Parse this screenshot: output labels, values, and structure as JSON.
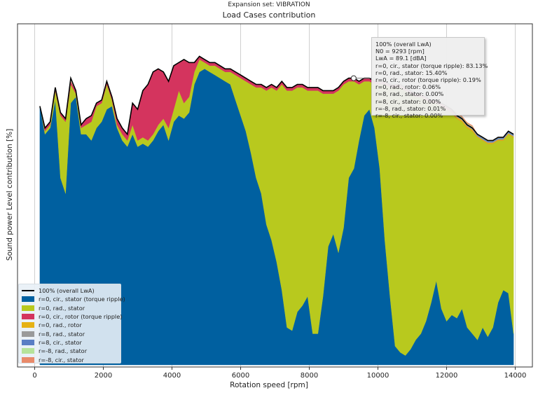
{
  "suptitle": "Expansion set: VIBRATION",
  "chart_data": {
    "type": "area",
    "stacked": true,
    "title": "Load Cases contribution",
    "xlabel": "Rotation speed [rpm]",
    "ylabel": "Sound power Level contribution [%]",
    "xlim": [
      -500,
      14500
    ],
    "xticks": [
      0,
      2000,
      4000,
      6000,
      8000,
      10000,
      12000,
      14000
    ],
    "xtick_labels": [
      "0",
      "2000",
      "4000",
      "6000",
      "8000",
      "10000",
      "12000",
      "14000"
    ],
    "y_axis_ticks_shown": false,
    "grid": "vertical",
    "legend_position": "lower-left",
    "total_line_label": "100% (overall LwA)",
    "x": [
      150,
      300,
      450,
      600,
      750,
      900,
      1050,
      1200,
      1350,
      1500,
      1650,
      1800,
      1950,
      2100,
      2250,
      2400,
      2550,
      2700,
      2850,
      3000,
      3150,
      3300,
      3450,
      3600,
      3750,
      3900,
      4050,
      4200,
      4350,
      4500,
      4650,
      4800,
      4950,
      5100,
      5250,
      5400,
      5550,
      5700,
      5850,
      6000,
      6150,
      6300,
      6450,
      6600,
      6750,
      6900,
      7050,
      7200,
      7350,
      7500,
      7650,
      7800,
      7950,
      8100,
      8250,
      8400,
      8550,
      8700,
      8850,
      9000,
      9150,
      9300,
      9450,
      9600,
      9750,
      9900,
      10050,
      10200,
      10350,
      10500,
      10650,
      10800,
      10950,
      11100,
      11250,
      11400,
      11550,
      11700,
      11850,
      12000,
      12150,
      12300,
      12450,
      12600,
      12750,
      12900,
      13050,
      13200,
      13350,
      13500,
      13650,
      13800,
      13950
    ],
    "total": [
      83,
      76,
      78,
      89,
      81,
      79,
      92,
      88,
      77,
      79,
      80,
      84,
      85,
      91,
      86,
      79,
      76,
      74,
      84,
      82,
      88,
      90,
      94,
      95,
      94,
      91,
      96,
      97,
      98,
      97,
      97,
      99,
      98,
      97,
      97,
      96,
      95,
      95,
      94,
      93,
      92,
      91,
      90,
      90,
      89,
      90,
      89,
      91,
      89,
      89,
      90,
      90,
      89,
      89,
      89,
      88,
      88,
      88,
      89,
      91,
      92,
      92,
      91,
      92,
      92,
      91,
      91,
      91,
      90,
      90,
      90,
      89,
      88,
      87,
      87,
      86,
      85,
      85,
      84,
      83,
      82,
      80,
      79,
      77,
      76,
      74,
      73,
      72,
      72,
      73,
      73,
      75,
      74
    ],
    "series": [
      {
        "name": "r=0, cir., stator (torque ripple)",
        "color": "#0060a0",
        "values": [
          83,
          74,
          76,
          85,
          60,
          55,
          84,
          86,
          74,
          74,
          72,
          76,
          78,
          82,
          83,
          76,
          72,
          70,
          74,
          70,
          71,
          70,
          72,
          75,
          77,
          72,
          78,
          80,
          79,
          81,
          90,
          94,
          95,
          94,
          93,
          92,
          91,
          90,
          85,
          80,
          75,
          68,
          60,
          55,
          45,
          40,
          33,
          24,
          12,
          11,
          17,
          19,
          22,
          10,
          10,
          22,
          38,
          42,
          36,
          44,
          60,
          63,
          72,
          80,
          82,
          76,
          63,
          40,
          22,
          6,
          4,
          3,
          5,
          8,
          10,
          14,
          20,
          27,
          18,
          14,
          16,
          15,
          18,
          12,
          10,
          8,
          12,
          9,
          12,
          20,
          24,
          23,
          10
        ]
      },
      {
        "name": "r=0, rad., stator",
        "color": "#b8c91e",
        "values": [
          0,
          1,
          1,
          3,
          20,
          23,
          6,
          1,
          2,
          3,
          6,
          7,
          6,
          8,
          2,
          1,
          2,
          2,
          3,
          2,
          2,
          2,
          2,
          2,
          2,
          4,
          4,
          8,
          5,
          5,
          4,
          4,
          2,
          2,
          3,
          3,
          3,
          4,
          8,
          12,
          16,
          22,
          29,
          34,
          43,
          49,
          55,
          66,
          76,
          77,
          72,
          70,
          66,
          78,
          78,
          65,
          49,
          45,
          52,
          46,
          31,
          28,
          18,
          11,
          9,
          14,
          27,
          50,
          67,
          83,
          85,
          85,
          82,
          78,
          76,
          71,
          64,
          57,
          65,
          68,
          65,
          64,
          60,
          64,
          65,
          65,
          60,
          62,
          59,
          52,
          48,
          51,
          63
        ]
      },
      {
        "name": "r=0, cir., rotor (torque ripple)",
        "color": "#d4345e",
        "values": [
          0,
          1,
          1,
          1,
          1,
          1,
          1,
          1,
          1,
          2,
          2,
          1,
          1,
          1,
          1,
          2,
          2,
          2,
          7,
          10,
          15,
          18,
          20,
          18,
          15,
          15,
          14,
          9,
          14,
          11,
          3,
          1,
          1,
          1,
          1,
          1,
          1,
          1,
          1,
          1,
          1,
          1,
          1,
          1,
          1,
          1,
          1,
          1,
          1,
          1,
          1,
          1,
          1,
          1,
          1,
          1,
          1,
          1,
          1,
          1,
          1,
          1,
          1,
          1,
          1,
          1,
          1,
          1,
          1,
          1,
          1,
          1,
          1,
          1,
          1,
          1,
          1,
          1,
          1,
          1,
          1,
          0,
          0,
          0,
          0,
          0,
          0,
          0,
          0,
          0,
          0,
          0,
          0
        ]
      },
      {
        "name": "r=0, rad., rotor",
        "color": "#e6b214",
        "values": [
          0,
          0,
          0,
          0,
          0,
          0,
          0,
          0,
          0,
          0,
          0,
          0,
          0,
          0,
          0,
          0,
          0,
          0,
          0,
          0,
          0,
          0,
          0,
          0,
          0,
          0,
          0,
          0,
          0,
          0,
          0,
          0,
          0,
          0,
          0,
          0,
          0,
          0,
          0,
          0,
          0,
          0,
          0,
          0,
          0,
          0,
          0,
          0,
          0,
          0,
          0,
          0,
          0,
          0,
          0,
          0,
          0,
          0,
          0,
          0,
          0,
          0,
          0,
          0,
          0,
          0,
          0,
          0,
          0,
          0,
          0,
          0,
          0,
          0,
          0,
          0,
          0,
          0,
          0,
          0,
          0,
          0.5,
          0.5,
          0.5,
          0.5,
          0.3,
          0.3,
          0.3,
          0.3,
          0.3,
          0.3,
          0.3,
          0.3
        ]
      },
      {
        "name": "r=8, rad., stator",
        "color": "#9a9a9a",
        "values": [
          0,
          0,
          0,
          0,
          0,
          0,
          0,
          0,
          0,
          0,
          0,
          0,
          0,
          0,
          0,
          0,
          0,
          0,
          0,
          0,
          0,
          0,
          0,
          0,
          0,
          0,
          0,
          0,
          0,
          0,
          0,
          0,
          0,
          0,
          0,
          0,
          0,
          0,
          0,
          0,
          0,
          0,
          0,
          0,
          0,
          0,
          0,
          0,
          0,
          0,
          0,
          0,
          0,
          0,
          0,
          0,
          0,
          0,
          0,
          0,
          0,
          0,
          0,
          0,
          0,
          0,
          0,
          0,
          0,
          0,
          0,
          0,
          0,
          0,
          0,
          0,
          0,
          0,
          0,
          0,
          0,
          0.4,
          0.4,
          0.4,
          0.4,
          0.2,
          0.2,
          0.2,
          0.2,
          0.2,
          0.2,
          0.2,
          0.2
        ]
      },
      {
        "name": "r=8, cir., stator",
        "color": "#5a7ec4",
        "values": [
          0,
          0,
          0,
          0,
          0,
          0,
          0,
          0,
          0,
          0,
          0,
          0,
          0,
          0,
          0,
          0,
          0,
          0,
          0,
          0,
          0,
          0,
          0,
          0,
          0,
          0,
          0,
          0,
          0,
          0,
          0,
          0,
          0,
          0,
          0,
          0,
          0,
          0,
          0,
          0,
          0,
          0,
          0,
          0,
          0,
          0,
          0,
          0,
          0,
          0,
          0,
          0,
          0,
          0,
          0,
          0,
          0,
          0,
          0,
          0,
          0,
          0,
          0,
          0,
          0,
          0,
          0,
          0,
          0,
          0,
          0,
          0,
          0,
          0,
          0,
          0,
          0,
          0,
          0,
          0,
          0,
          0.4,
          0.4,
          0.4,
          0.4,
          0.3,
          0.3,
          0.3,
          0.3,
          0.3,
          0.3,
          0.3,
          0.3
        ]
      },
      {
        "name": "r=-8, rad., stator",
        "color": "#b6e39a",
        "values": [
          0,
          0,
          0,
          0,
          0,
          0,
          0,
          0,
          0,
          0,
          0,
          0,
          0,
          0,
          0,
          0,
          0,
          0,
          0,
          0,
          0,
          0,
          0,
          0,
          0,
          0,
          0,
          0,
          0,
          0,
          0,
          0,
          0,
          0,
          0,
          0,
          0,
          0,
          0,
          0,
          0,
          0,
          0,
          0,
          0,
          0,
          0,
          0,
          0,
          0,
          0,
          0,
          0,
          0,
          0,
          0,
          0,
          0,
          0,
          0,
          0,
          0,
          0,
          0,
          0,
          0,
          0,
          0,
          0,
          0,
          0,
          0,
          0,
          0,
          0,
          0,
          0,
          0,
          0,
          0,
          0,
          0.2,
          0.2,
          0.2,
          0.2,
          0.1,
          0.1,
          0.1,
          0.1,
          0.1,
          0.1,
          0.1,
          0.1
        ]
      },
      {
        "name": "r=-8, cir., stator",
        "color": "#e98a6a",
        "values": [
          0,
          0,
          0,
          0,
          0,
          0,
          0,
          0,
          0,
          0,
          0,
          0,
          0,
          0,
          0,
          0,
          0,
          0,
          0,
          0,
          0,
          0,
          0,
          0,
          0,
          0,
          0,
          0,
          0,
          0,
          0,
          0,
          0,
          0,
          0,
          0,
          0,
          0,
          0,
          0,
          0,
          0,
          0,
          0,
          0,
          0,
          0,
          0,
          0,
          0,
          0,
          0,
          0,
          0,
          0,
          0,
          0,
          0,
          0,
          0,
          0,
          0,
          0,
          0,
          0,
          0,
          0,
          0,
          0,
          0,
          0,
          0,
          0,
          0,
          0,
          0,
          0,
          0,
          0,
          0,
          0,
          0.3,
          0.3,
          0.3,
          0.3,
          0.1,
          0.1,
          0.1,
          0.1,
          0.1,
          0.1,
          0.1,
          0.1
        ]
      }
    ]
  },
  "legend": {
    "total_label": "100% (overall LwA)",
    "items": [
      {
        "label": "r=0, cir., stator (torque ripple)",
        "color": "#0060a0"
      },
      {
        "label": "r=0, rad., stator",
        "color": "#b8c91e"
      },
      {
        "label": "r=0, cir., rotor (torque ripple)",
        "color": "#d4345e"
      },
      {
        "label": "r=0, rad., rotor",
        "color": "#e6b214"
      },
      {
        "label": "r=8, rad., stator",
        "color": "#9a9a9a"
      },
      {
        "label": "r=8, cir., stator",
        "color": "#5a7ec4"
      },
      {
        "label": "r=-8, rad., stator",
        "color": "#b6e39a"
      },
      {
        "label": "r=-8, cir., stator",
        "color": "#e98a6a"
      }
    ]
  },
  "tooltip": {
    "x_rpm": 9293,
    "lines": [
      "100% (overall LwA)",
      "N0 = 9293 [rpm]",
      "LwA = 89.1 [dBA]",
      "r=0, cir., stator (torque ripple): 83.13%",
      "r=0, rad., stator: 15.40%",
      "r=0, cir., rotor (torque ripple): 0.19%",
      "r=0, rad., rotor: 0.06%",
      "r=8, rad., stator: 0.00%",
      "r=8, cir., stator: 0.00%",
      "r=-8, rad., stator: 0.01%",
      "r=-8, cir., stator: 0.00%"
    ]
  }
}
